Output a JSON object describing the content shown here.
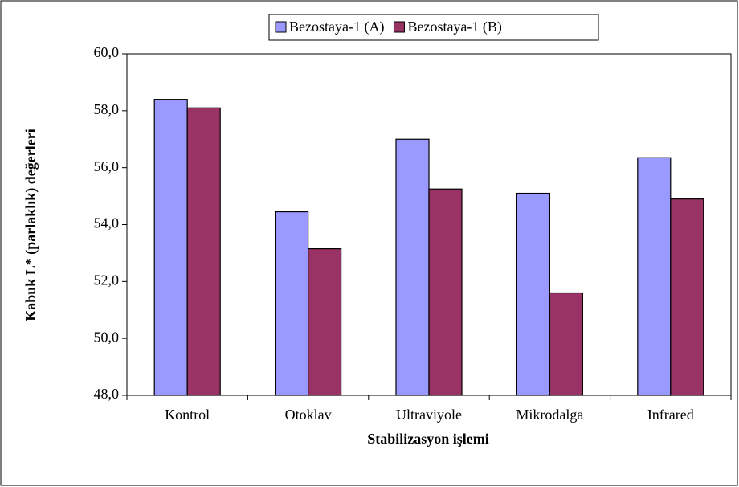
{
  "chart_data": {
    "type": "bar",
    "x_label": "Stabilizasyon işlemi",
    "y_label": "Kabuk L* (parlaklık) değerleri",
    "categories": [
      "Kontrol",
      "Otoklav",
      "Ultraviyole",
      "Mikrodalga",
      "Infrared"
    ],
    "series": [
      {
        "name": "Bezostaya-1 (A)",
        "color": "#9999ff",
        "values": [
          58.4,
          54.45,
          57.0,
          55.1,
          56.35
        ]
      },
      {
        "name": "Bezostaya-1 (B)",
        "color": "#993366",
        "values": [
          58.1,
          53.15,
          55.25,
          51.6,
          54.9
        ]
      }
    ],
    "ylim": [
      48,
      60
    ],
    "yticks": [
      {
        "value": 48,
        "label": "48,0"
      },
      {
        "value": 50,
        "label": "50,0"
      },
      {
        "value": 52,
        "label": "52,0"
      },
      {
        "value": 54,
        "label": "54,0"
      },
      {
        "value": 56,
        "label": "56,0"
      },
      {
        "value": 58,
        "label": "58,0"
      },
      {
        "value": 60,
        "label": "60,0"
      }
    ],
    "legend": "top",
    "grid": false
  }
}
